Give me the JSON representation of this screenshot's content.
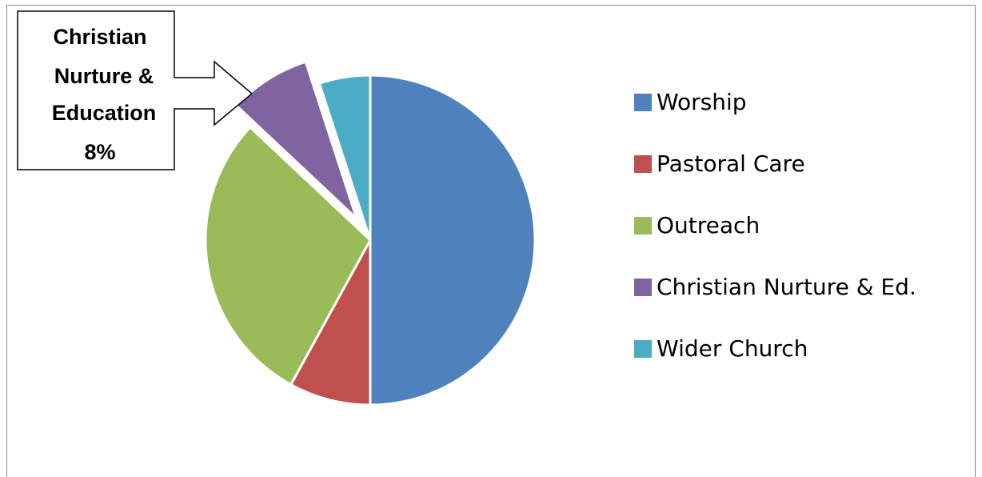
{
  "chart_data": {
    "type": "pie",
    "title": "",
    "slices": [
      {
        "name": "Worship",
        "value": 50,
        "color": "#4F81BD"
      },
      {
        "name": "Pastoral Care",
        "value": 8,
        "color": "#C0504D"
      },
      {
        "name": "Outreach",
        "value": 29,
        "color": "#9BBB59"
      },
      {
        "name": "Christian Nurture & Ed.",
        "value": 8,
        "color": "#8064A2",
        "exploded": true
      },
      {
        "name": "Wider Church",
        "value": 5,
        "color": "#4BACC6"
      }
    ],
    "legend_position": "right",
    "callout": {
      "lines": [
        "Christian",
        "Nurture &",
        "Education",
        "8%"
      ],
      "target": "Christian Nurture & Ed."
    }
  }
}
